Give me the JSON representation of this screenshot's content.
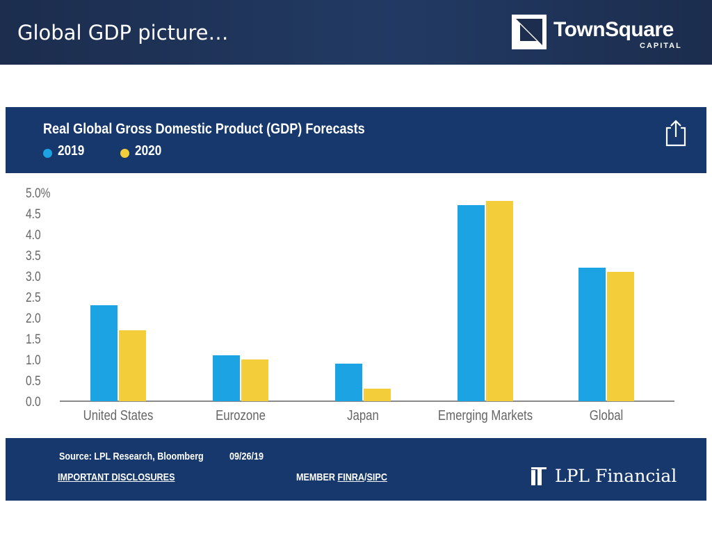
{
  "slide": {
    "title": "Global GDP picture…"
  },
  "brand": {
    "name": "TownSquare",
    "sub": "CAPITAL"
  },
  "chart_data": {
    "type": "bar",
    "title": "Real Global Gross Domestic Product (GDP) Forecasts",
    "categories": [
      "United States",
      "Eurozone",
      "Japan",
      "Emerging Markets",
      "Global"
    ],
    "series": [
      {
        "name": "2019",
        "color": "#1ba3e4",
        "values": [
          2.3,
          1.1,
          0.9,
          4.7,
          3.2
        ]
      },
      {
        "name": "2020",
        "color": "#f3cd3a",
        "values": [
          1.7,
          1.0,
          0.3,
          4.8,
          3.1
        ]
      }
    ],
    "ylim": [
      0,
      5
    ],
    "yticks": [
      "0.0",
      "0.5",
      "1.0",
      "1.5",
      "2.0",
      "2.5",
      "3.0",
      "3.5",
      "4.0",
      "4.5",
      "5.0%"
    ],
    "xlabel": "",
    "ylabel": "",
    "grid": false,
    "legend": "top-left"
  },
  "footer": {
    "source": "Source: LPL Research, Bloomberg",
    "date": "09/26/19",
    "disclosures": "IMPORTANT DISCLOSURES",
    "member_prefix": "MEMBER",
    "finra": "FINRA",
    "separator": "/",
    "sipc": "SIPC",
    "lpl_name": "LPL Financial"
  },
  "colors": {
    "navy": "#16386c",
    "header": "#1c2d4e",
    "blue_2019": "#1ba3e4",
    "yellow_2020": "#f3cd3a",
    "axis": "#888888"
  }
}
